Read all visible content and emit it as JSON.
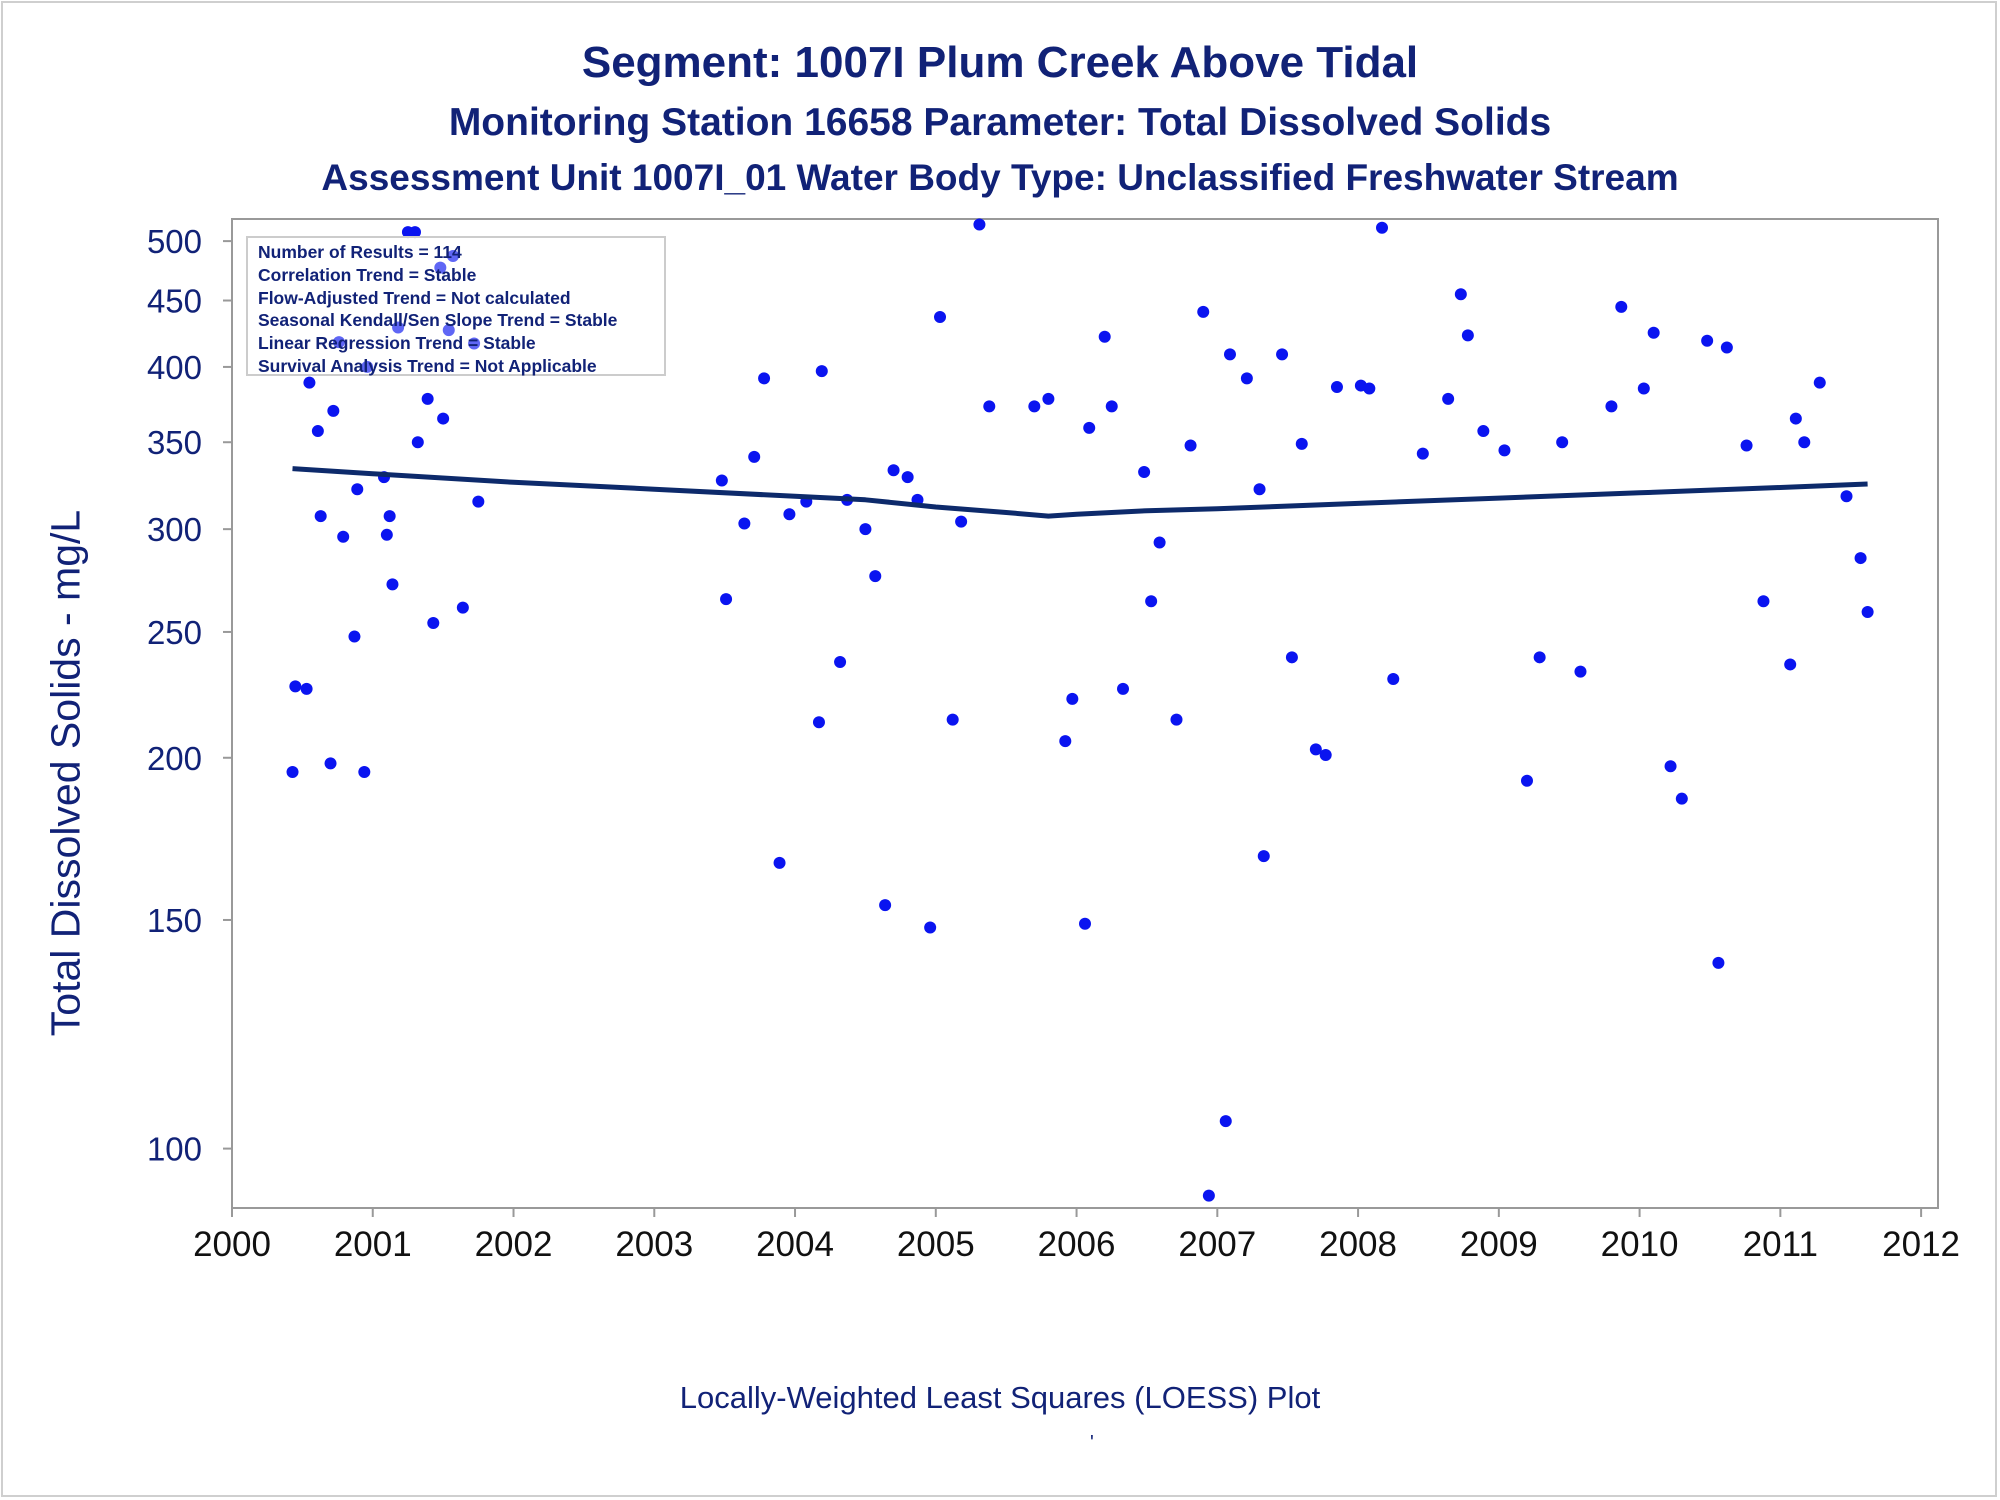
{
  "titles": {
    "line1": "Segment: 1007I  Plum Creek Above Tidal",
    "line2": "Monitoring Station 16658 Parameter: Total Dissolved Solids",
    "line3": "Assessment Unit 1007I_01   Water Body Type: Unclassified Freshwater Stream"
  },
  "footnote": "Locally-Weighted Least Squares (LOESS) Plot",
  "footnote_mark": "'",
  "stats_box": [
    "Number of Results = 114",
    "Correlation Trend = Stable",
    "Flow-Adjusted Trend = Not calculated",
    "Seasonal Kendall/Sen Slope Trend = Stable",
    "Linear Regression Trend = Stable",
    "Survival Analysis Trend = Not Applicable"
  ],
  "colors": {
    "text": "#112277",
    "points": "#0a14f0",
    "loess": "#0d2a6b",
    "axis": "#999999"
  },
  "chart_data": {
    "type": "scatter",
    "ylabel": "Total Dissolved Solids - mg/L",
    "xlabel": "",
    "yscale": "log",
    "xlim": [
      2000,
      2012.12
    ],
    "ylim": [
      90,
      520
    ],
    "x_ticks": [
      2000,
      2001,
      2002,
      2003,
      2004,
      2005,
      2006,
      2007,
      2008,
      2009,
      2010,
      2011,
      2012
    ],
    "y_ticks": [
      100,
      150,
      200,
      250,
      300,
      350,
      400,
      450,
      500
    ],
    "grid": false,
    "series": [
      {
        "kind": "points",
        "points": [
          [
            2000.43,
            195
          ],
          [
            2000.45,
            227
          ],
          [
            2000.53,
            226
          ],
          [
            2000.55,
            389
          ],
          [
            2000.61,
            357
          ],
          [
            2000.63,
            307
          ],
          [
            2000.7,
            198
          ],
          [
            2000.72,
            370
          ],
          [
            2000.76,
            418
          ],
          [
            2000.79,
            296
          ],
          [
            2000.87,
            248
          ],
          [
            2000.89,
            322
          ],
          [
            2000.94,
            195
          ],
          [
            2000.96,
            400
          ],
          [
            2001.08,
            329
          ],
          [
            2001.1,
            297
          ],
          [
            2001.12,
            307
          ],
          [
            2001.14,
            272
          ],
          [
            2001.18,
            429
          ],
          [
            2001.25,
            508
          ],
          [
            2001.3,
            508
          ],
          [
            2001.32,
            350
          ],
          [
            2001.39,
            378
          ],
          [
            2001.43,
            254
          ],
          [
            2001.48,
            477
          ],
          [
            2001.5,
            365
          ],
          [
            2001.54,
            427
          ],
          [
            2001.57,
            487
          ],
          [
            2001.64,
            261
          ],
          [
            2001.72,
            417
          ],
          [
            2001.75,
            315
          ],
          [
            2003.48,
            327
          ],
          [
            2003.51,
            265
          ],
          [
            2003.64,
            303
          ],
          [
            2003.71,
            341
          ],
          [
            2003.78,
            392
          ],
          [
            2003.89,
            166
          ],
          [
            2003.96,
            308
          ],
          [
            2004.08,
            315
          ],
          [
            2004.17,
            213
          ],
          [
            2004.19,
            397
          ],
          [
            2004.32,
            237
          ],
          [
            2004.37,
            316
          ],
          [
            2004.5,
            300
          ],
          [
            2004.57,
            276
          ],
          [
            2004.64,
            154
          ],
          [
            2004.7,
            333
          ],
          [
            2004.8,
            329
          ],
          [
            2004.87,
            316
          ],
          [
            2004.96,
            148
          ],
          [
            2005.03,
            437
          ],
          [
            2005.12,
            214
          ],
          [
            2005.18,
            304
          ],
          [
            2005.31,
            515
          ],
          [
            2005.38,
            373
          ],
          [
            2005.7,
            373
          ],
          [
            2005.8,
            378
          ],
          [
            2005.92,
            206
          ],
          [
            2005.97,
            222
          ],
          [
            2006.06,
            149
          ],
          [
            2006.09,
            359
          ],
          [
            2006.2,
            422
          ],
          [
            2006.25,
            373
          ],
          [
            2006.33,
            226
          ],
          [
            2006.48,
            332
          ],
          [
            2006.53,
            264
          ],
          [
            2006.59,
            293
          ],
          [
            2006.71,
            214
          ],
          [
            2006.81,
            348
          ],
          [
            2006.9,
            441
          ],
          [
            2006.94,
            92
          ],
          [
            2007.06,
            105
          ],
          [
            2007.09,
            409
          ],
          [
            2007.21,
            392
          ],
          [
            2007.3,
            322
          ],
          [
            2007.33,
            168
          ],
          [
            2007.46,
            409
          ],
          [
            2007.53,
            239
          ],
          [
            2007.6,
            349
          ],
          [
            2007.7,
            203
          ],
          [
            2007.77,
            201
          ],
          [
            2007.85,
            386
          ],
          [
            2008.02,
            387
          ],
          [
            2008.08,
            385
          ],
          [
            2008.17,
            512
          ],
          [
            2008.25,
            230
          ],
          [
            2008.46,
            343
          ],
          [
            2008.64,
            378
          ],
          [
            2008.73,
            455
          ],
          [
            2008.78,
            423
          ],
          [
            2008.89,
            357
          ],
          [
            2009.04,
            345
          ],
          [
            2009.2,
            192
          ],
          [
            2009.29,
            239
          ],
          [
            2009.45,
            350
          ],
          [
            2009.58,
            233
          ],
          [
            2009.8,
            373
          ],
          [
            2009.87,
            445
          ],
          [
            2010.03,
            385
          ],
          [
            2010.1,
            425
          ],
          [
            2010.22,
            197
          ],
          [
            2010.3,
            186
          ],
          [
            2010.48,
            419
          ],
          [
            2010.56,
            139
          ],
          [
            2010.62,
            414
          ],
          [
            2010.76,
            348
          ],
          [
            2010.88,
            264
          ],
          [
            2011.07,
            236
          ],
          [
            2011.11,
            365
          ],
          [
            2011.17,
            350
          ],
          [
            2011.28,
            389
          ],
          [
            2011.47,
            318
          ],
          [
            2011.57,
            285
          ],
          [
            2011.62,
            259
          ]
        ]
      },
      {
        "kind": "loess",
        "points": [
          [
            2000.43,
            334
          ],
          [
            2001.0,
            331
          ],
          [
            2002.0,
            326
          ],
          [
            2003.0,
            322
          ],
          [
            2004.0,
            318
          ],
          [
            2004.5,
            316
          ],
          [
            2005.0,
            312
          ],
          [
            2005.5,
            309
          ],
          [
            2005.8,
            307
          ],
          [
            2006.0,
            308
          ],
          [
            2006.5,
            310
          ],
          [
            2007.0,
            311
          ],
          [
            2008.0,
            314
          ],
          [
            2009.0,
            317
          ],
          [
            2010.0,
            320
          ],
          [
            2011.0,
            323
          ],
          [
            2011.62,
            325
          ]
        ]
      }
    ]
  }
}
